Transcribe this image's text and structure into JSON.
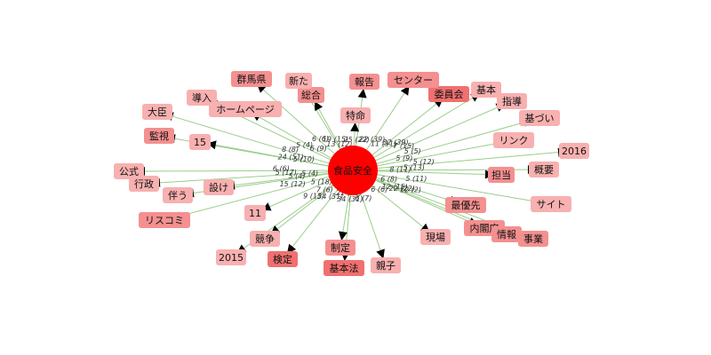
{
  "colors": {
    "center": "#ff0000",
    "edge": "#9acd8a",
    "dark": "#f07070",
    "mid": "#f49090",
    "light": "#f8b0b0"
  },
  "center": {
    "label": "食品安全"
  },
  "nodes": [
    {
      "id": "2016",
      "label": "2016",
      "shade": "light",
      "edge_label": "5 (12)"
    },
    {
      "id": "gaiyo",
      "label": "概要",
      "shade": "light",
      "edge_label": "5 (13)"
    },
    {
      "id": "tanto",
      "label": "担当",
      "shade": "mid",
      "edge_label": "8 (11)"
    },
    {
      "id": "link",
      "label": "リンク",
      "shade": "light",
      "edge_label": "5 (9)"
    },
    {
      "id": "kidzuki",
      "label": "基づい",
      "shade": "light",
      "edge_label": "5 (5)"
    },
    {
      "id": "shido",
      "label": "指導",
      "shade": "light",
      "edge_label": "7 (15)"
    },
    {
      "id": "kihon",
      "label": "基本",
      "shade": "light",
      "edge_label": "32 (39)"
    },
    {
      "id": "iinkai",
      "label": "委員会",
      "shade": "dark",
      "edge_label": "11 (11)"
    },
    {
      "id": "center2",
      "label": "センター",
      "shade": "mid",
      "edge_label": "22 (39)"
    },
    {
      "id": "hokoku",
      "label": "報告",
      "shade": "mid",
      "edge_label": "25 (22)"
    },
    {
      "id": "tokumei",
      "label": "特命",
      "shade": "light",
      "edge_label": "7 (7)"
    },
    {
      "id": "kenkou",
      "label": "総合",
      "shade": "mid",
      "edge_label": "13 (12)"
    },
    {
      "id": "arata",
      "label": "新た",
      "shade": "light",
      "edge_label": "19 (15)"
    },
    {
      "id": "gunma",
      "label": "群馬県",
      "shade": "mid",
      "edge_label": "6 (6)"
    },
    {
      "id": "homepage",
      "label": "ホームページ",
      "shade": "light",
      "edge_label": "6 (9)"
    },
    {
      "id": "donyu",
      "label": "導入",
      "shade": "light",
      "edge_label": "5 (4)"
    },
    {
      "id": "daijin",
      "label": "大臣",
      "shade": "light",
      "edge_label": "8 (8)"
    },
    {
      "id": "n15",
      "label": "15",
      "shade": "light",
      "edge_label": "5 (10)"
    },
    {
      "id": "kanshi",
      "label": "監視",
      "shade": "mid",
      "edge_label": "24 (51)"
    },
    {
      "id": "koshiki",
      "label": "公式",
      "shade": "light",
      "edge_label": "6 (6)"
    },
    {
      "id": "gyosei",
      "label": "行政",
      "shade": "light",
      "edge_label": "5 (17)"
    },
    {
      "id": "mouke",
      "label": "設け",
      "shade": "light",
      "edge_label": "5 (4)"
    },
    {
      "id": "tomonau",
      "label": "伴う",
      "shade": "light",
      "edge_label": "5 (4)"
    },
    {
      "id": "riskcomi",
      "label": "リスコミ",
      "shade": "mid",
      "edge_label": "15 (12)"
    },
    {
      "id": "n11",
      "label": "11",
      "shade": "light",
      "edge_label": "5 (18)"
    },
    {
      "id": "kyoso",
      "label": "競争",
      "shade": "light",
      "edge_label": "7 (6)"
    },
    {
      "id": "n2015",
      "label": "2015",
      "shade": "light",
      "edge_label": "9 (15)"
    },
    {
      "id": "kentei",
      "label": "検定",
      "shade": "dark",
      "edge_label": "34 (31)"
    },
    {
      "id": "seitei",
      "label": "制定",
      "shade": "mid",
      "edge_label": "21 (20)"
    },
    {
      "id": "kihonho",
      "label": "基本法",
      "shade": "dark",
      "edge_label": "34 (31)"
    },
    {
      "id": "oyako",
      "label": "親子",
      "shade": "light",
      "edge_label": "6 (7)"
    },
    {
      "id": "genba",
      "label": "現場",
      "shade": "light",
      "edge_label": "6 (6)"
    },
    {
      "id": "saiyusen",
      "label": "最優先",
      "shade": "mid",
      "edge_label": "6 (8)"
    },
    {
      "id": "naikaku",
      "label": "内閣府",
      "shade": "mid",
      "edge_label": "12 (15)"
    },
    {
      "id": "joho",
      "label": "情報",
      "shade": "mid",
      "edge_label": "22 (22)"
    },
    {
      "id": "jigyo",
      "label": "事業",
      "shade": "mid",
      "edge_label": "12 (2)"
    },
    {
      "id": "site",
      "label": "サイト",
      "shade": "light",
      "edge_label": "5 (11)"
    }
  ]
}
